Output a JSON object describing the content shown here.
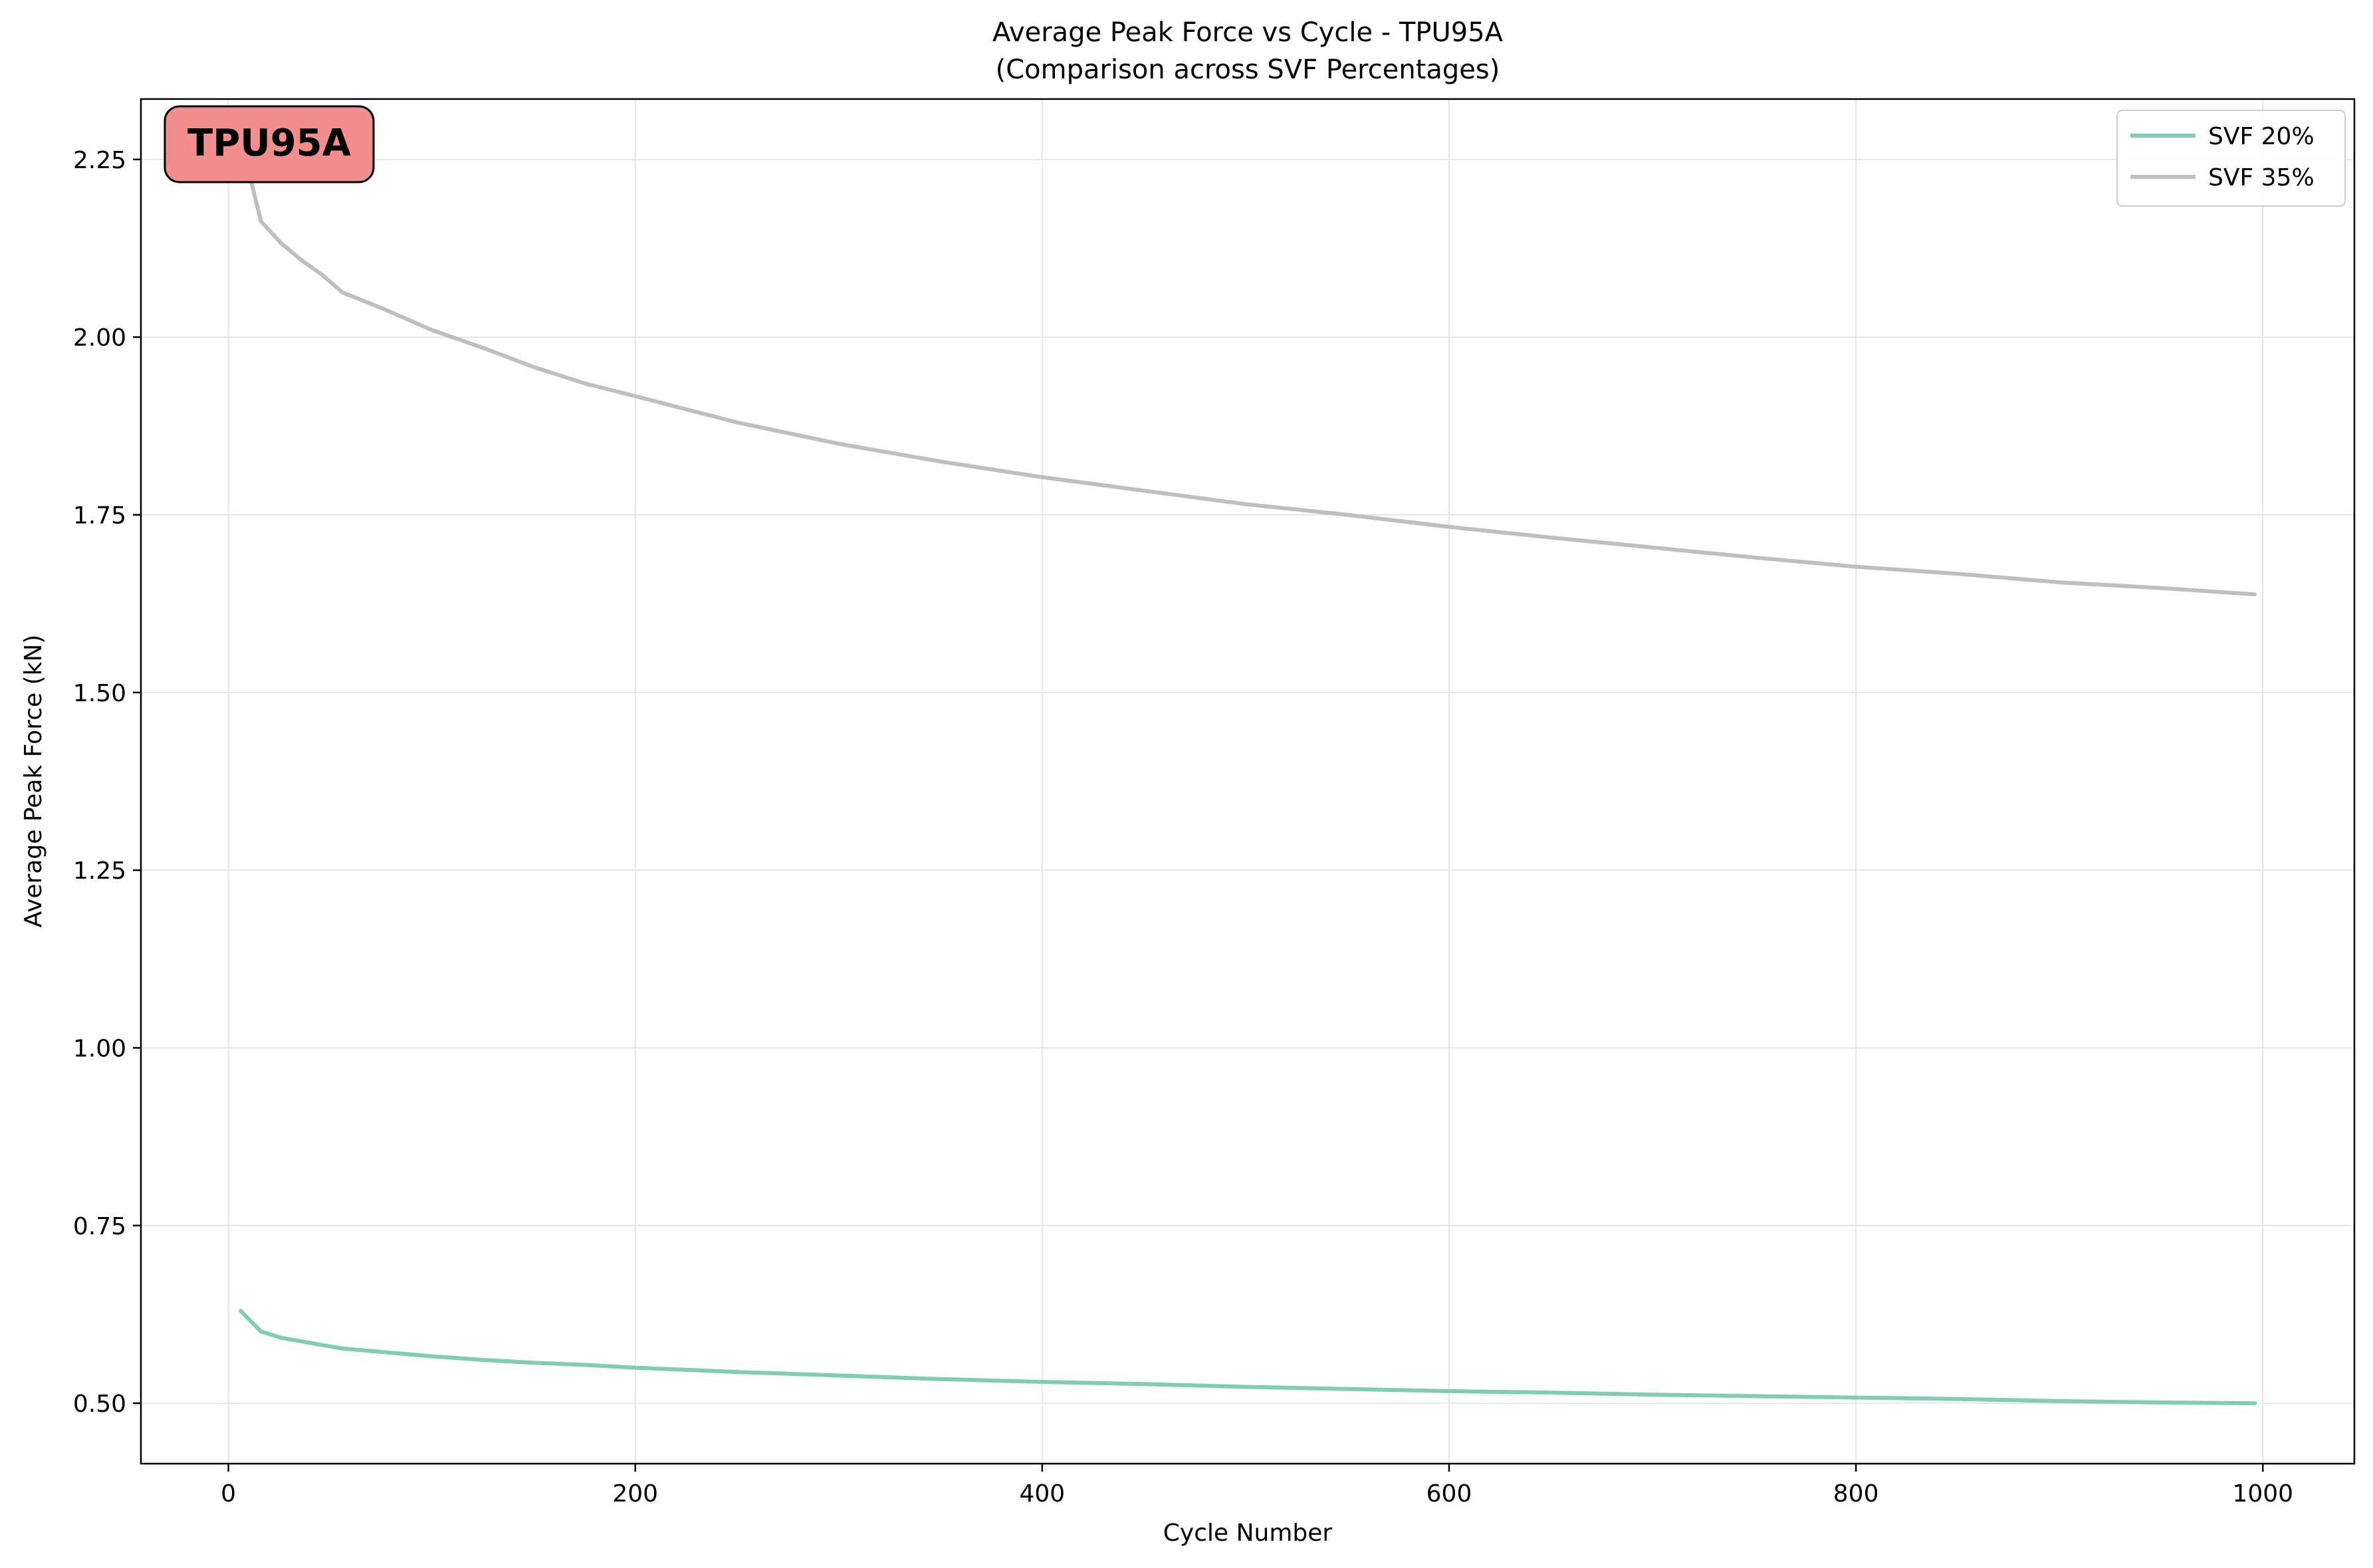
{
  "chart_data": {
    "type": "line",
    "title": "Average Peak Force vs Cycle - TPU95A",
    "subtitle": "(Comparison across SVF Percentages)",
    "xlabel": "Cycle Number",
    "ylabel": "Average Peak Force (kN)",
    "xlim": [
      -43,
      1045
    ],
    "ylim": [
      0.415,
      2.335
    ],
    "xticks": [
      0,
      200,
      400,
      600,
      800,
      1000
    ],
    "xtick_labels": [
      "0",
      "200",
      "400",
      "600",
      "800",
      "1000"
    ],
    "yticks": [
      0.5,
      0.75,
      1.0,
      1.25,
      1.5,
      1.75,
      2.0,
      2.25
    ],
    "ytick_labels": [
      "0.50",
      "0.75",
      "1.00",
      "1.25",
      "1.50",
      "1.75",
      "2.00",
      "2.25"
    ],
    "grid": true,
    "legend_position": "top-right",
    "annotation": "TPU95A",
    "colors": {
      "annotation_fill": "#f28e8e",
      "grid": "#e6e6e6"
    },
    "series": [
      {
        "name": "SVF 20%",
        "color": "#80cdb3",
        "x": [
          6,
          16,
          26,
          36,
          46,
          56,
          76,
          100,
          125,
          150,
          175,
          200,
          250,
          300,
          350,
          400,
          450,
          500,
          550,
          600,
          650,
          700,
          750,
          800,
          850,
          900,
          950,
          996
        ],
        "y": [
          0.63,
          0.601,
          0.592,
          0.587,
          0.582,
          0.577,
          0.572,
          0.566,
          0.561,
          0.557,
          0.554,
          0.55,
          0.544,
          0.539,
          0.534,
          0.53,
          0.527,
          0.523,
          0.52,
          0.517,
          0.515,
          0.512,
          0.51,
          0.508,
          0.506,
          0.503,
          0.501,
          0.5
        ]
      },
      {
        "name": "SVF 35%",
        "color": "#bfbfbf",
        "x": [
          6,
          16,
          26,
          36,
          46,
          56,
          76,
          100,
          125,
          150,
          175,
          200,
          250,
          300,
          350,
          400,
          450,
          500,
          550,
          600,
          650,
          700,
          750,
          800,
          850,
          900,
          950,
          996
        ],
        "y": [
          2.28,
          2.163,
          2.132,
          2.108,
          2.088,
          2.063,
          2.04,
          2.01,
          1.985,
          1.958,
          1.935,
          1.917,
          1.88,
          1.85,
          1.825,
          1.803,
          1.784,
          1.765,
          1.75,
          1.733,
          1.718,
          1.704,
          1.69,
          1.677,
          1.667,
          1.655,
          1.647,
          1.638
        ]
      }
    ]
  }
}
